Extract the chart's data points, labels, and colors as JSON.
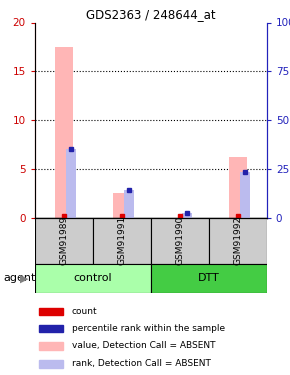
{
  "title": "GDS2363 / 248644_at",
  "samples": [
    "GSM91989",
    "GSM91991",
    "GSM91990",
    "GSM91992"
  ],
  "pink_bars": [
    17.5,
    2.5,
    0.0,
    6.2
  ],
  "blue_bars": [
    7.0,
    2.8,
    0.5,
    4.7
  ],
  "pink_color": "#FFB6B6",
  "blue_color": "#BBBBEE",
  "red_color": "#DD0000",
  "dark_blue_color": "#2222AA",
  "ylim_left": [
    0,
    20
  ],
  "ylim_right": [
    0,
    100
  ],
  "yticks_left": [
    0,
    5,
    10,
    15,
    20
  ],
  "yticks_right": [
    0,
    25,
    50,
    75,
    100
  ],
  "left_axis_color": "#CC0000",
  "right_axis_color": "#2222BB",
  "group_control_color": "#AAFFAA",
  "group_dtt_color": "#44CC44",
  "sample_box_color": "#CCCCCC",
  "legend_items": [
    {
      "label": "count",
      "color": "#DD0000"
    },
    {
      "label": "percentile rank within the sample",
      "color": "#2222AA"
    },
    {
      "label": "value, Detection Call = ABSENT",
      "color": "#FFB6B6"
    },
    {
      "label": "rank, Detection Call = ABSENT",
      "color": "#BBBBEE"
    }
  ]
}
